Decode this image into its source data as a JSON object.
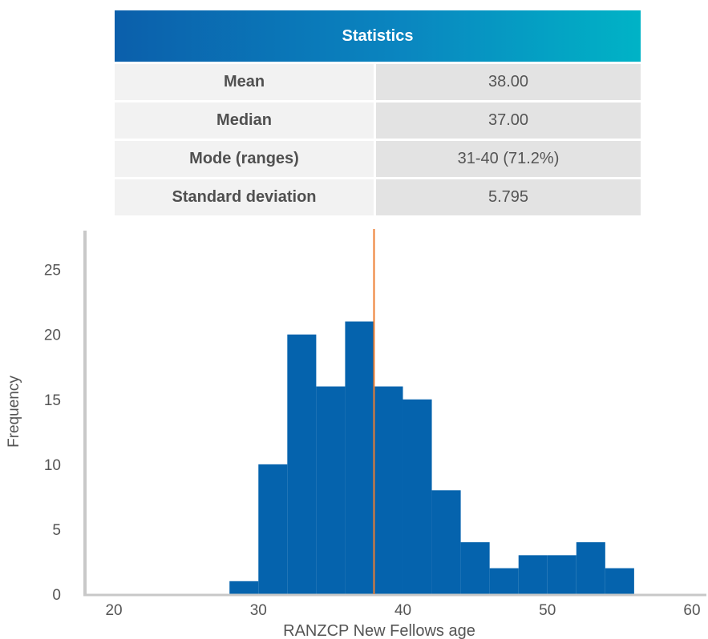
{
  "stats_table": {
    "header": "Statistics",
    "rows": [
      {
        "label": "Mean",
        "value": "38.00"
      },
      {
        "label": "Median",
        "value": "37.00"
      },
      {
        "label": "Mode (ranges)",
        "value": "31-40 (71.2%)"
      },
      {
        "label": "Standard deviation",
        "value": "5.795"
      }
    ]
  },
  "colors": {
    "bar": "#0563ad",
    "mean_line": "#ed7d31",
    "axis": "#c8c8c8",
    "header_gradient": [
      "#0b5fab",
      "#00b3c6"
    ]
  },
  "chart_data": {
    "type": "bar",
    "subtype": "histogram",
    "xlabel": "RANZCP New Fellows age",
    "ylabel": "Frequency",
    "x_ticks": [
      20,
      30,
      40,
      50,
      60
    ],
    "y_ticks": [
      0,
      5,
      10,
      15,
      20,
      25
    ],
    "xlim": [
      18,
      61
    ],
    "ylim": [
      0,
      28
    ],
    "bin_width": 2,
    "bins": [
      {
        "start": 28,
        "end": 30,
        "value": 1
      },
      {
        "start": 30,
        "end": 32,
        "value": 10
      },
      {
        "start": 32,
        "end": 34,
        "value": 20
      },
      {
        "start": 34,
        "end": 36,
        "value": 16
      },
      {
        "start": 36,
        "end": 38,
        "value": 21
      },
      {
        "start": 38,
        "end": 40,
        "value": 16
      },
      {
        "start": 40,
        "end": 42,
        "value": 15
      },
      {
        "start": 42,
        "end": 44,
        "value": 8
      },
      {
        "start": 44,
        "end": 46,
        "value": 4
      },
      {
        "start": 46,
        "end": 48,
        "value": 2
      },
      {
        "start": 48,
        "end": 50,
        "value": 3
      },
      {
        "start": 50,
        "end": 52,
        "value": 3
      },
      {
        "start": 52,
        "end": 54,
        "value": 4
      },
      {
        "start": 54,
        "end": 56,
        "value": 2
      }
    ],
    "mean_line_x": 38,
    "grid": false,
    "legend": "none"
  }
}
